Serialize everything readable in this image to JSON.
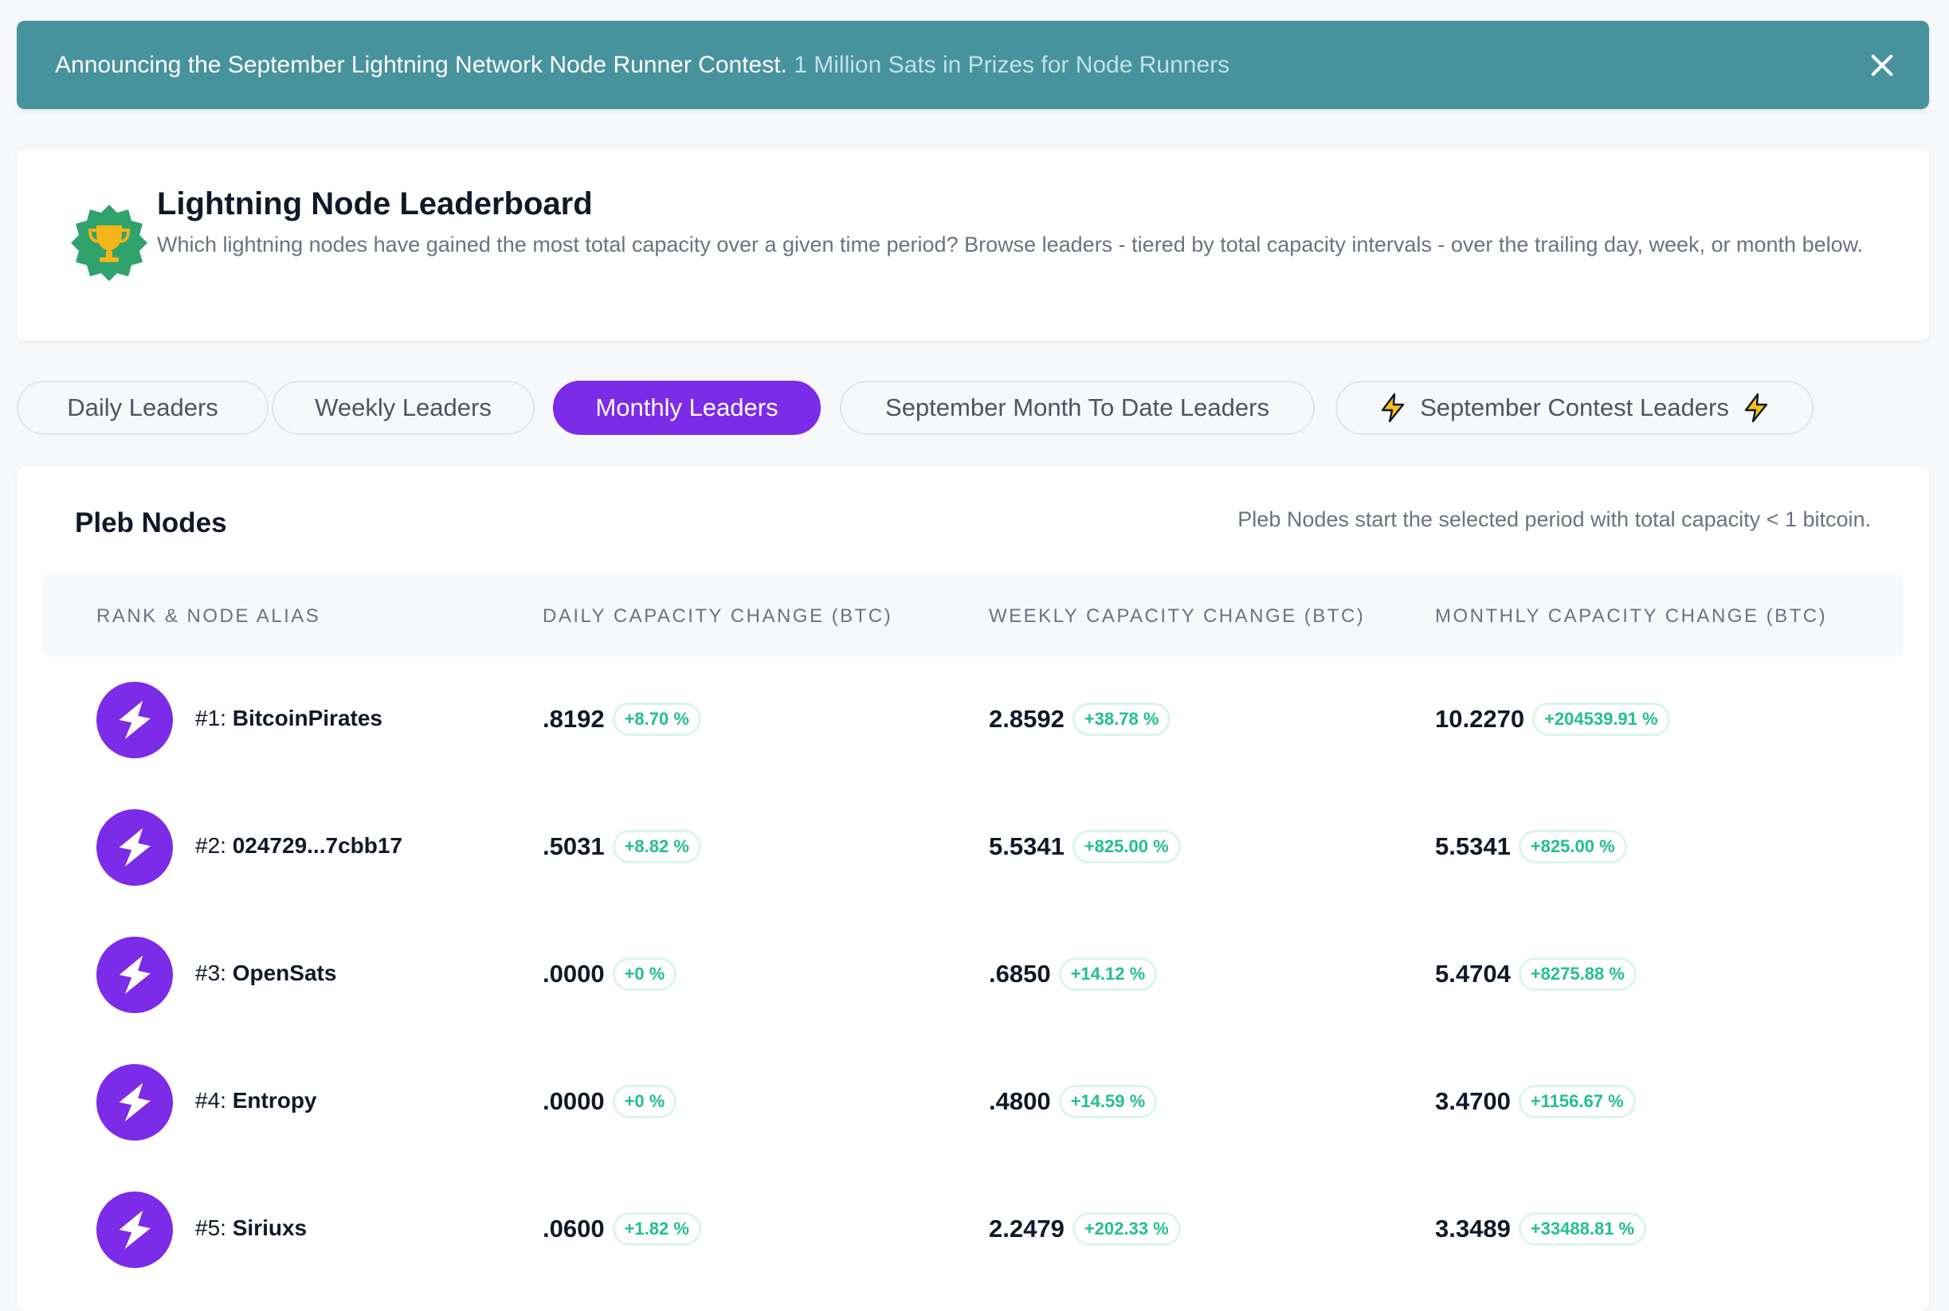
{
  "banner": {
    "main_text": "Announcing the September Lightning Network Node Runner Contest.",
    "sub_text": "1 Million Sats in Prizes for Node Runners"
  },
  "header": {
    "title": "Lightning Node Leaderboard",
    "description": "Which lightning nodes have gained the most total capacity over a given time period? Browse leaders - tiered by total capacity intervals - over the trailing day, week, or month below.",
    "icon": "trophy-badge-icon"
  },
  "tabs": [
    {
      "label": "Daily Leaders",
      "active": false
    },
    {
      "label": "Weekly Leaders",
      "active": false
    },
    {
      "label": "Monthly Leaders",
      "active": true
    },
    {
      "label": "September Month To Date Leaders",
      "active": false
    },
    {
      "label": "September Contest Leaders",
      "active": false,
      "icon": "lightning-icon"
    }
  ],
  "section": {
    "title": "Pleb Nodes",
    "note": "Pleb Nodes start the selected period with total capacity < 1 bitcoin."
  },
  "table": {
    "columns": [
      "RANK & NODE ALIAS",
      "DAILY CAPACITY CHANGE (BTC)",
      "WEEKLY CAPACITY CHANGE (BTC)",
      "MONTHLY CAPACITY CHANGE (BTC)"
    ],
    "rows": [
      {
        "rank": "#1:",
        "alias": "BitcoinPirates",
        "daily": ".8192",
        "daily_pct": "+8.70 %",
        "weekly": "2.8592",
        "weekly_pct": "+38.78 %",
        "monthly": "10.2270",
        "monthly_pct": "+204539.91 %"
      },
      {
        "rank": "#2:",
        "alias": "024729...7cbb17",
        "daily": ".5031",
        "daily_pct": "+8.82 %",
        "weekly": "5.5341",
        "weekly_pct": "+825.00 %",
        "monthly": "5.5341",
        "monthly_pct": "+825.00 %"
      },
      {
        "rank": "#3:",
        "alias": "OpenSats",
        "daily": ".0000",
        "daily_pct": "+0 %",
        "weekly": ".6850",
        "weekly_pct": "+14.12 %",
        "monthly": "5.4704",
        "monthly_pct": "+8275.88 %"
      },
      {
        "rank": "#4:",
        "alias": "Entropy",
        "daily": ".0000",
        "daily_pct": "+0 %",
        "weekly": ".4800",
        "weekly_pct": "+14.59 %",
        "monthly": "3.4700",
        "monthly_pct": "+1156.67 %"
      },
      {
        "rank": "#5:",
        "alias": "Siriuxs",
        "daily": ".0600",
        "daily_pct": "+1.82 %",
        "weekly": "2.2479",
        "weekly_pct": "+202.33 %",
        "monthly": "3.3489",
        "monthly_pct": "+33488.81 %"
      }
    ]
  },
  "colors": {
    "banner": "#47939d",
    "accent": "#7c2be8",
    "positive": "#22c08a"
  }
}
